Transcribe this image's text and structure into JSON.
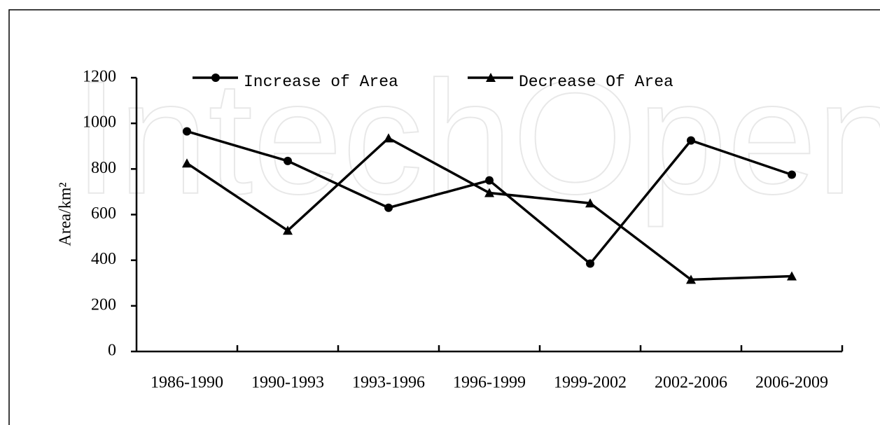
{
  "chart_data": {
    "type": "line",
    "watermark": "IntechOpen",
    "ylabel": "Area/km²",
    "categories": [
      "1986-1990",
      "1990-1993",
      "1993-1996",
      "1996-1999",
      "1999-2002",
      "2002-2006",
      "2006-2009"
    ],
    "series": [
      {
        "name": "Increase of Area",
        "color": "#000000",
        "marker": "circle",
        "values": [
          965,
          835,
          630,
          750,
          385,
          925,
          775
        ]
      },
      {
        "name": "Decrease Of Area",
        "color": "#000000",
        "marker": "triangle",
        "values": [
          825,
          530,
          935,
          695,
          650,
          315,
          330
        ]
      }
    ],
    "ylim": [
      0,
      1200
    ],
    "yticks": [
      0,
      200,
      400,
      600,
      800,
      1000,
      1200
    ],
    "grid": false,
    "legend": "top"
  }
}
